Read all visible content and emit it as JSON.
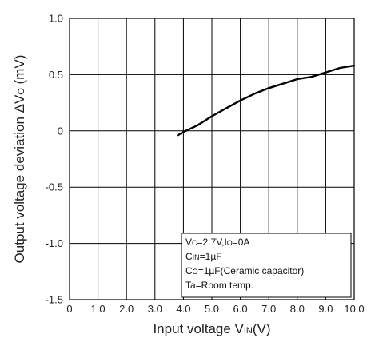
{
  "chart_data": {
    "type": "line",
    "title": "",
    "xlabel": {
      "main": "Input voltage V",
      "sub": "IN",
      "tail": "(V)"
    },
    "ylabel": {
      "main": "Output voltage deviation ΔV",
      "sub": "O",
      "tail": " (mV)"
    },
    "xlim": [
      0,
      10
    ],
    "ylim": [
      -1.5,
      1.0
    ],
    "xticks": [
      0,
      1,
      2,
      3,
      4,
      5,
      6,
      7,
      8,
      9,
      10
    ],
    "xtick_labels": [
      "0",
      "1.0",
      "2.0",
      "3.0",
      "4.0",
      "5.0",
      "6.0",
      "7.0",
      "8.0",
      "9.0",
      "10.0"
    ],
    "yticks": [
      1.0,
      0.5,
      0,
      -0.5,
      -1.0,
      -1.5
    ],
    "ytick_labels": [
      "1.0",
      "0.5",
      "0",
      "-0.5",
      "-1.0",
      "-1.5"
    ],
    "grid": true,
    "series": [
      {
        "x": [
          3.8,
          4.0,
          4.5,
          5.0,
          5.5,
          6.0,
          6.5,
          7.0,
          7.5,
          8.0,
          8.5,
          9.0,
          9.5,
          10.0
        ],
        "y": [
          -0.04,
          -0.01,
          0.05,
          0.13,
          0.2,
          0.27,
          0.33,
          0.38,
          0.42,
          0.46,
          0.48,
          0.52,
          0.56,
          0.58
        ],
        "color": "#000000"
      }
    ],
    "annotations": [
      {
        "parts": [
          [
            "V",
            false
          ],
          [
            "C",
            true
          ],
          [
            "=2.7V,I",
            false
          ],
          [
            "O",
            true
          ],
          [
            "=0A",
            false
          ]
        ]
      },
      {
        "parts": [
          [
            "C",
            false
          ],
          [
            "IN",
            true
          ],
          [
            "=1µF",
            false
          ]
        ]
      },
      {
        "parts": [
          [
            "C",
            false
          ],
          [
            "O",
            true
          ],
          [
            "=1µF(Ceramic capacitor)",
            false
          ]
        ]
      },
      {
        "parts": [
          [
            "Ta=Room temp.",
            false
          ]
        ]
      }
    ]
  }
}
